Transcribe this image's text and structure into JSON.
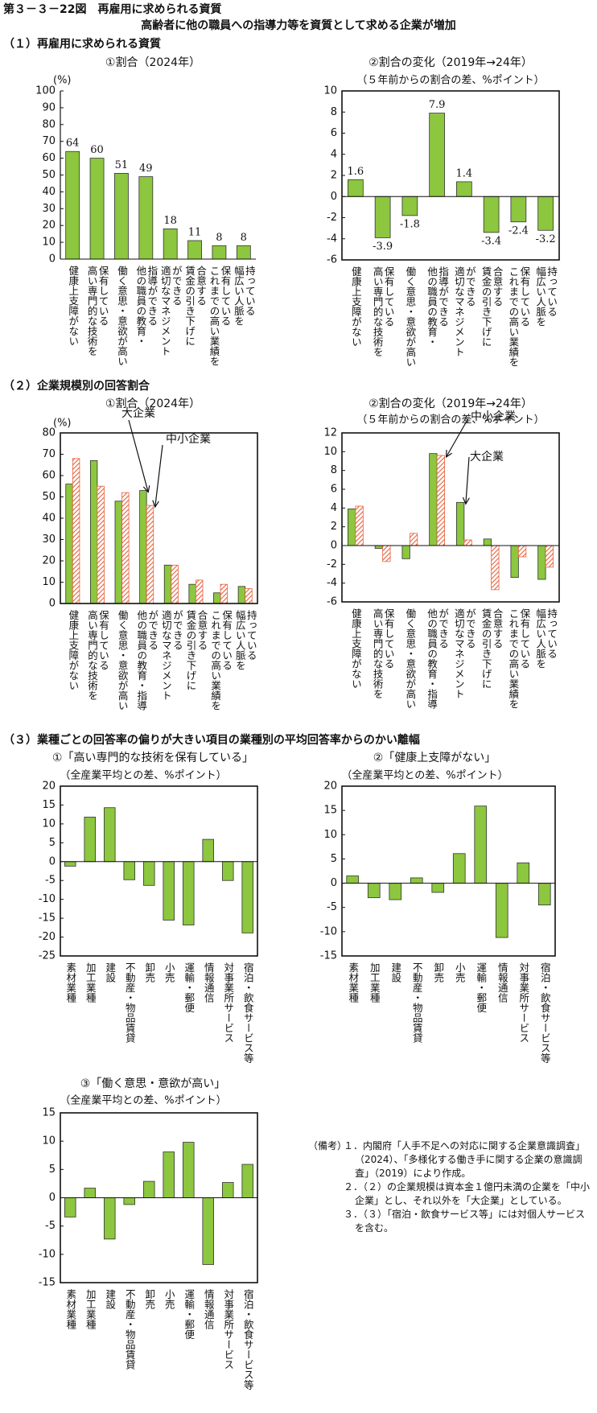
{
  "header": {
    "title": "第３－３－22図　再雇用に求められる資質",
    "subtitle": "高齢者に他の職員への指導力等を資質として求める企業が増加"
  },
  "sections": [
    "（１）再雇用に求められる資質",
    "（２）企業規模別の回答割合",
    "（３）業種ごとの回答率の偏りが大きい項目の業種別の平均回答率からのかい離幅"
  ],
  "chart_data": [
    {
      "type": "bar",
      "title": "①割合（2024年）",
      "ylabel": "(%)",
      "frame": false,
      "data_labels": true,
      "color": "#8dc63f",
      "categories": [
        "健康上支障がない",
        "高い専門的な技術を\n保有している",
        "働く意思・意欲が高い",
        "他の職員の教育・\n指導ができる",
        "適切なマネジメント\nができる",
        "賃金の引き下げに\n合意する",
        "これまでの高い業績を\n保有している",
        "幅広い人脈を\n持っている"
      ],
      "values": [
        64,
        60,
        51,
        49,
        18,
        11,
        8,
        8
      ],
      "ylim": [
        0,
        100
      ],
      "yticks": [
        0,
        10,
        20,
        30,
        40,
        50,
        60,
        70,
        80,
        90,
        100
      ]
    },
    {
      "type": "bar",
      "title": "②割合の変化（2019年→24年）",
      "subtitle": "（５年前からの割合の差、%ポイント）",
      "frame": true,
      "data_labels": true,
      "color": "#8dc63f",
      "categories": [
        "健康上支障がない",
        "高い専門的な技術を\n保有している",
        "働く意思・意欲が高い",
        "他の職員の教育・\n指導ができる",
        "適切なマネジメント\nができる",
        "賃金の引き下げに\n合意する",
        "これまでの高い業績を\n保有している",
        "幅広い人脈を\n持っている"
      ],
      "values": [
        1.6,
        -3.9,
        -1.8,
        7.9,
        1.4,
        -3.4,
        -2.4,
        -3.2
      ],
      "ylim": [
        -6,
        10
      ],
      "yticks": [
        -6,
        -4,
        -2,
        0,
        2,
        4,
        6,
        8,
        10
      ]
    },
    {
      "type": "bar",
      "title": "①割合（2024年）",
      "ylabel": "(%)",
      "frame": true,
      "data_labels": false,
      "categories": [
        "健康上支障がない",
        "高い専門的な技術を\n保有している",
        "働く意思・意欲が高い",
        "他の職員の教育・指導\nができる",
        "適切なマネジメント\nができる",
        "賃金の引き下げに\n合意する",
        "これまでの高い業績を\n保有している",
        "幅広い人脈を\n持っている"
      ],
      "series": [
        {
          "name": "大企業",
          "color": "#8dc63f",
          "values": [
            56,
            67,
            48,
            53,
            18,
            9,
            5,
            8
          ]
        },
        {
          "name": "中小企業",
          "color": "#e8603c",
          "pattern": "diagonal",
          "values": [
            68,
            55,
            52,
            46,
            18,
            11,
            9,
            7
          ]
        }
      ],
      "ylim": [
        0,
        80
      ],
      "yticks": [
        0,
        10,
        20,
        30,
        40,
        50,
        60,
        70,
        80
      ]
    },
    {
      "type": "bar",
      "title": "②割合の変化（2019年→24年）",
      "subtitle": "（５年前からの割合の差、%ポイント）",
      "frame": true,
      "data_labels": false,
      "categories": [
        "健康上支障がない",
        "高い専門的な技術を\n保有している",
        "働く意思・意欲が高い",
        "他の職員の教育・指導\nができる",
        "適切なマネジメント\nができる",
        "賃金の引き下げに\n合意する",
        "これまでの高い業績を\n保有している",
        "幅広い人脈を\n持っている"
      ],
      "series": [
        {
          "name": "大企業",
          "color": "#8dc63f",
          "values": [
            3.9,
            -0.3,
            -1.4,
            9.8,
            4.6,
            0.7,
            -3.4,
            -3.6
          ]
        },
        {
          "name": "中小企業",
          "color": "#e8603c",
          "pattern": "diagonal",
          "values": [
            4.2,
            -1.7,
            1.3,
            9.6,
            0.6,
            -4.7,
            -1.2,
            -2.3
          ]
        }
      ],
      "ylim": [
        -6,
        12
      ],
      "yticks": [
        -6,
        -4,
        -2,
        0,
        2,
        4,
        6,
        8,
        10,
        12
      ]
    },
    {
      "type": "bar",
      "title": "①「高い専門的な技術を保有している」",
      "subtitle": "（全産業平均との差、%ポイント）",
      "frame": true,
      "data_labels": false,
      "color": "#8dc63f",
      "categories": [
        "素材業種",
        "加工業種",
        "建設",
        "不動産・物品賃貸",
        "卸売",
        "小売",
        "運輸・郵便",
        "情報通信",
        "対事業所サービス",
        "宿泊・飲食サービス等"
      ],
      "values": [
        -1.2,
        11.8,
        14.3,
        -4.8,
        -6.3,
        -15.5,
        -16.8,
        5.9,
        -5.0,
        -18.9
      ],
      "ylim": [
        -25,
        20
      ],
      "yticks": [
        -25,
        -20,
        -15,
        -10,
        -5,
        0,
        5,
        10,
        15,
        20
      ]
    },
    {
      "type": "bar",
      "title": "②「健康上支障がない」",
      "subtitle": "（全産業平均との差、%ポイント）",
      "frame": true,
      "data_labels": false,
      "color": "#8dc63f",
      "categories": [
        "素材業種",
        "加工業種",
        "建設",
        "不動産・物品賃貸",
        "卸売",
        "小売",
        "運輸・郵便",
        "情報通信",
        "対事業所サービス",
        "宿泊・飲食サービス等"
      ],
      "values": [
        1.5,
        -3.0,
        -3.4,
        1.1,
        -1.9,
        6.1,
        15.9,
        -11.2,
        4.2,
        -4.5
      ],
      "ylim": [
        -15,
        20
      ],
      "yticks": [
        -15,
        -10,
        -5,
        0,
        5,
        10,
        15,
        20
      ]
    },
    {
      "type": "bar",
      "title": "③「働く意思・意欲が高い」",
      "subtitle": "（全産業平均との差、%ポイント）",
      "frame": true,
      "data_labels": false,
      "color": "#8dc63f",
      "categories": [
        "素材業種",
        "加工業種",
        "建設",
        "不動産・物品賃貸",
        "卸売",
        "小売",
        "運輸・郵便",
        "情報通信",
        "対事業所サービス",
        "宿泊・飲食サービス等"
      ],
      "values": [
        -3.4,
        1.7,
        -7.3,
        -1.2,
        2.9,
        8.1,
        9.8,
        -11.8,
        2.7,
        5.9
      ],
      "ylim": [
        -15,
        15
      ],
      "yticks": [
        -15,
        -10,
        -5,
        0,
        5,
        10,
        15
      ]
    }
  ],
  "notes": {
    "label": "（備考）",
    "items": [
      "１．内閣府「人手不足への対応に関する企業意識調査」（2024）、「多様化する働き手に関する企業の意識調査」（2019）により作成。",
      "２．（２）の企業規模は資本金１億円未満の企業を「中小企業」とし、それ以外を「大企業」としている。",
      "３．（３）「宿泊・飲食サービス等」には対個人サービスを含む。"
    ]
  }
}
